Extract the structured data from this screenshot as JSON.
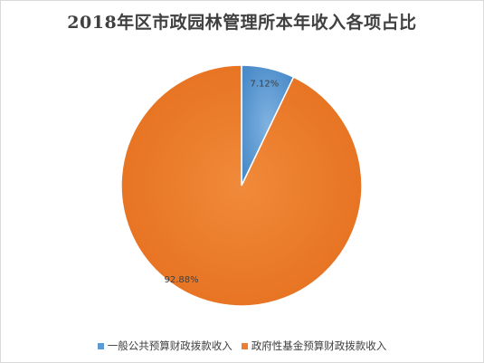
{
  "chart_data": {
    "type": "pie",
    "title": "2018年区市政园林管理所本年收入各项占比",
    "categories": [
      "一般公共预算财政拨款收入",
      "政府性基金预算财政拨款收入"
    ],
    "values": [
      7.12,
      92.88
    ],
    "data_labels": [
      "7.12%",
      "92.88%"
    ],
    "colors": [
      "#5B9BD5",
      "#ED7D31"
    ],
    "legend_position": "bottom"
  }
}
